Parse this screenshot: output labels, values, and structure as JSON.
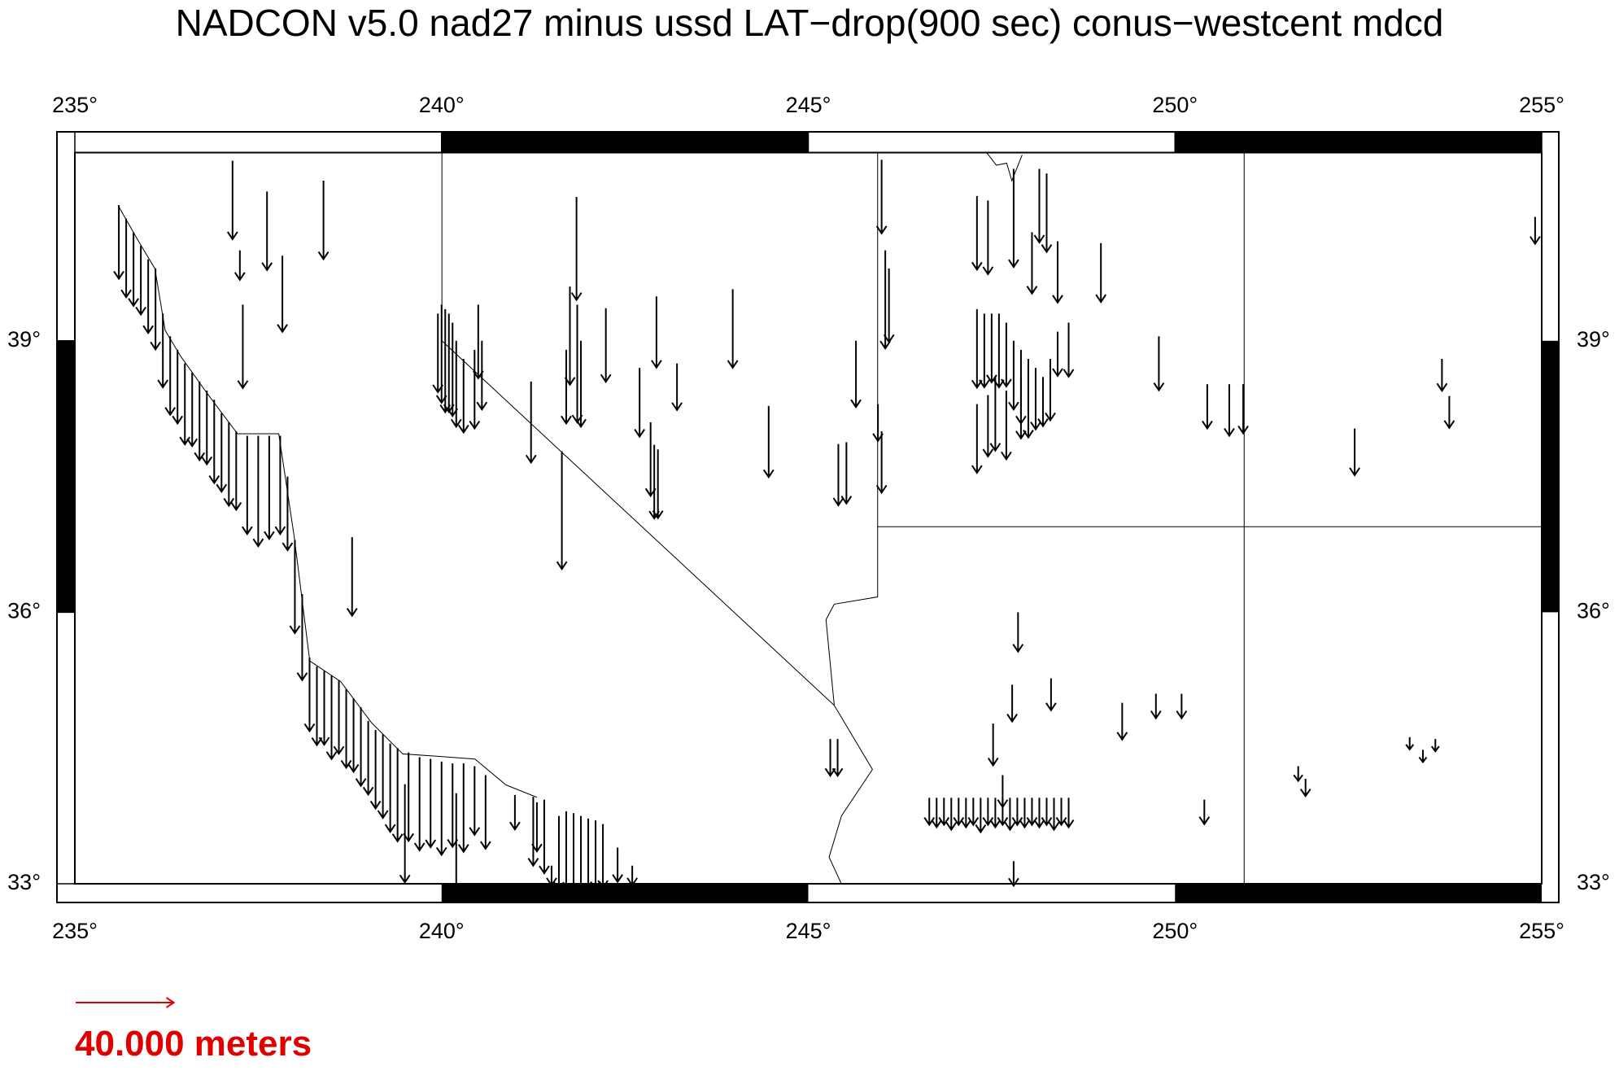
{
  "map": {
    "title": "NADCON v5.0 nad27 minus ussd LAT−drop(900 sec) conus−westcent mdcd",
    "xlim": [
      235,
      255
    ],
    "ylim": [
      33,
      41.08
    ],
    "xticks": [
      {
        "value": 235,
        "label": "235°"
      },
      {
        "value": 240,
        "label": "240°"
      },
      {
        "value": 245,
        "label": "245°"
      },
      {
        "value": 250,
        "label": "250°"
      },
      {
        "value": 255,
        "label": "255°"
      }
    ],
    "yticks": [
      {
        "value": 33,
        "label": "33°"
      },
      {
        "value": 36,
        "label": "36°"
      },
      {
        "value": 39,
        "label": "39°"
      }
    ],
    "vector_color": "#000000",
    "vectors": {
      "lon": [
        235.6,
        235.7,
        235.8,
        235.9,
        236.0,
        236.1,
        236.2,
        236.3,
        236.4,
        236.5,
        236.6,
        236.7,
        236.8,
        236.9,
        237.0,
        237.1,
        237.2,
        237.35,
        237.5,
        237.65,
        237.8,
        237.9,
        238.0,
        238.1,
        238.2,
        238.3,
        238.4,
        238.5,
        238.6,
        238.7,
        238.8,
        238.9,
        239.0,
        239.1,
        239.2,
        239.3,
        239.4,
        239.55,
        239.7,
        239.85,
        240.0,
        240.15,
        240.3,
        240.45,
        240.6,
        241.0,
        241.25,
        241.4,
        241.6,
        241.7,
        241.8,
        241.9,
        242.0,
        242.1,
        242.2,
        242.4,
        242.6,
        240.0,
        240.05,
        240.1,
        239.95,
        240.15,
        240.2,
        240.3,
        240.45,
        240.5,
        240.55,
        241.75,
        241.85,
        241.9,
        241.7,
        242.85,
        242.9,
        242.95,
        242.7,
        246.0,
        246.05,
        246.1,
        246.0,
        245.95,
        247.3,
        247.45,
        247.8,
        248.15,
        248.25,
        248.05,
        248.4,
        247.3,
        247.4,
        247.5,
        247.6,
        247.7,
        247.8,
        247.9,
        248.0,
        248.1,
        247.3,
        247.45,
        247.55,
        247.7,
        247.9,
        248.2,
        248.3,
        248.55,
        248.4,
        245.3,
        245.4,
        246.65,
        246.75,
        246.85,
        246.95,
        247.05,
        247.15,
        247.25,
        247.35,
        247.45,
        247.55,
        247.65,
        247.75,
        247.85,
        247.95,
        248.05,
        248.15,
        248.25,
        248.35,
        248.45,
        248.55,
        241.5,
        247.8,
        239.5,
        240.2,
        241.3,
        237.15,
        237.25,
        237.62,
        237.83,
        238.39,
        237.29,
        241.84,
        242.24,
        242.93,
        243.21,
        243.97,
        244.46,
        245.65,
        245.41,
        245.52,
        248.99,
        249.78,
        250.44,
        250.74,
        250.93,
        252.45,
        253.64,
        253.74,
        254.91,
        238.78,
        241.64,
        241.22,
        247.86,
        248.31,
        247.78,
        247.52,
        249.28,
        249.74,
        250.09,
        250.4,
        251.78,
        253.2,
        251.68,
        253.55,
        253.38,
        247.65
      ],
      "lat": [
        40.5,
        40.35,
        40.2,
        40.05,
        39.9,
        39.8,
        39.3,
        39.05,
        38.9,
        38.75,
        38.65,
        38.55,
        38.45,
        38.35,
        38.2,
        38.1,
        38.0,
        37.95,
        37.95,
        37.95,
        37.95,
        37.5,
        36.8,
        36.2,
        35.5,
        35.4,
        35.35,
        35.3,
        35.25,
        35.15,
        35.05,
        34.95,
        34.8,
        34.7,
        34.65,
        34.55,
        34.5,
        34.45,
        34.4,
        34.38,
        34.35,
        34.33,
        34.33,
        34.3,
        34.2,
        33.98,
        33.96,
        33.93,
        33.75,
        33.8,
        33.78,
        33.75,
        33.72,
        33.7,
        33.66,
        33.4,
        33.2,
        39.4,
        39.35,
        39.3,
        39.3,
        39.2,
        39.0,
        38.8,
        38.9,
        39.4,
        39.0,
        39.6,
        39.4,
        39.0,
        38.9,
        38.1,
        37.85,
        37.8,
        38.7,
        41.0,
        40.0,
        39.8,
        38.0,
        38.3,
        40.6,
        40.55,
        40.9,
        40.9,
        40.85,
        40.2,
        40.1,
        39.35,
        39.3,
        39.3,
        39.3,
        39.2,
        39.0,
        38.9,
        38.8,
        38.7,
        38.3,
        38.4,
        38.6,
        38.45,
        38.6,
        38.6,
        38.8,
        39.2,
        39.1,
        34.6,
        34.6,
        33.95,
        33.95,
        33.95,
        33.95,
        33.95,
        33.95,
        33.95,
        33.95,
        33.95,
        33.95,
        33.95,
        33.95,
        33.95,
        33.95,
        33.95,
        33.95,
        33.95,
        33.95,
        33.95,
        33.95,
        33.2,
        33.25,
        34.1,
        34.0,
        33.9,
        40.99,
        40.0,
        40.65,
        39.94,
        40.77,
        39.4,
        40.59,
        39.36,
        39.49,
        38.75,
        39.57,
        38.28,
        39.0,
        37.86,
        37.88,
        40.08,
        39.05,
        38.52,
        38.52,
        38.52,
        38.03,
        38.8,
        38.39,
        40.37,
        36.83,
        37.78,
        38.55,
        36.0,
        35.27,
        35.2,
        34.77,
        35.0,
        35.1,
        35.1,
        33.93,
        34.16,
        34.62,
        34.3,
        34.6,
        34.48,
        34.2
      ],
      "south_m": [
        30,
        32,
        30,
        28,
        30,
        33,
        30,
        32,
        30,
        33,
        30,
        32,
        30,
        34,
        32,
        34,
        32,
        40,
        45,
        42,
        40,
        30,
        38,
        35,
        30,
        32,
        30,
        34,
        30,
        32,
        30,
        32,
        30,
        32,
        34,
        36,
        38,
        36,
        38,
        36,
        38,
        34,
        36,
        28,
        30,
        14,
        28,
        30,
        30,
        33,
        34,
        32,
        30,
        28,
        26,
        14,
        8,
        40,
        42,
        40,
        32,
        38,
        35,
        30,
        32,
        30,
        28,
        40,
        48,
        35,
        30,
        30,
        30,
        28,
        28,
        30,
        40,
        30,
        25,
        15,
        30,
        30,
        40,
        30,
        32,
        25,
        25,
        32,
        30,
        28,
        30,
        26,
        28,
        30,
        32,
        25,
        28,
        25,
        30,
        28,
        25,
        20,
        25,
        22,
        18,
        15,
        15,
        11,
        12,
        11,
        13,
        11,
        12,
        11,
        14,
        11,
        12,
        11,
        13,
        11,
        12,
        11,
        12,
        11,
        13,
        11,
        12,
        8,
        10,
        40,
        42,
        20,
        32,
        12,
        32,
        31,
        32,
        34,
        42,
        30,
        29,
        19,
        32,
        29,
        27,
        25,
        25,
        24,
        22,
        18,
        21,
        20,
        19,
        13,
        13,
        11,
        32,
        48,
        33,
        16,
        13,
        15,
        17,
        15,
        10,
        10,
        10,
        7,
        5,
        6,
        5,
        5,
        13
      ]
    },
    "scale": {
      "length_m": 40,
      "label": "40.000 meters",
      "color": "#e00000"
    }
  }
}
